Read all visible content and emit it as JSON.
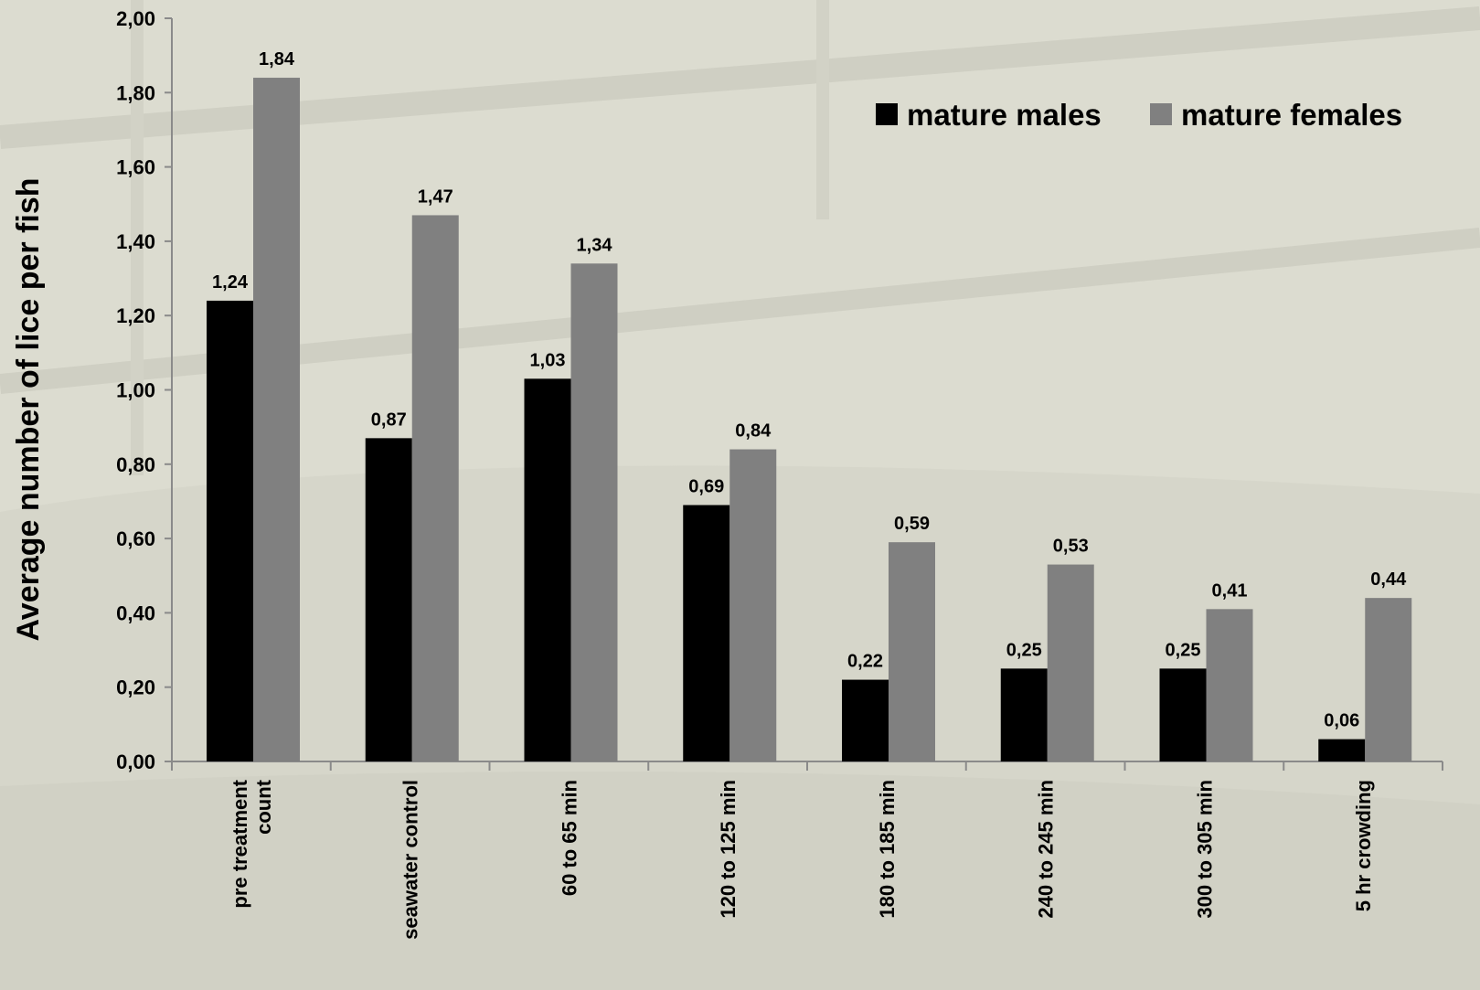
{
  "chart_data": {
    "type": "bar",
    "ylabel": "Average number of lice per fish",
    "xlabel": "",
    "title": "",
    "ylim": [
      0,
      2
    ],
    "ytick_step": 0.2,
    "ytick_labels": [
      "0,00",
      "0,20",
      "0,40",
      "0,60",
      "0,80",
      "1,00",
      "1,20",
      "1,40",
      "1,60",
      "1,80",
      "2,00"
    ],
    "categories": [
      [
        "pre treatment",
        "count"
      ],
      [
        "seawater control"
      ],
      [
        "60 to 65 min"
      ],
      [
        "120 to 125 min"
      ],
      [
        "180 to 185 min"
      ],
      [
        "240 to 245 min"
      ],
      [
        "300 to 305 min"
      ],
      [
        "5 hr crowding"
      ]
    ],
    "series": [
      {
        "name": "mature males",
        "color": "#000000",
        "values": [
          1.24,
          0.87,
          1.03,
          0.69,
          0.22,
          0.25,
          0.25,
          0.06
        ],
        "labels": [
          "1,24",
          "0,87",
          "1,03",
          "0,69",
          "0,22",
          "0,25",
          "0,25",
          "0,06"
        ]
      },
      {
        "name": "mature females",
        "color": "#808080",
        "values": [
          1.84,
          1.47,
          1.34,
          0.84,
          0.59,
          0.53,
          0.41,
          0.44
        ],
        "labels": [
          "1,84",
          "1,47",
          "1,34",
          "0,84",
          "0,59",
          "0,53",
          "0,41",
          "0,44"
        ]
      }
    ],
    "legend_position": "top-right",
    "grid": false
  }
}
